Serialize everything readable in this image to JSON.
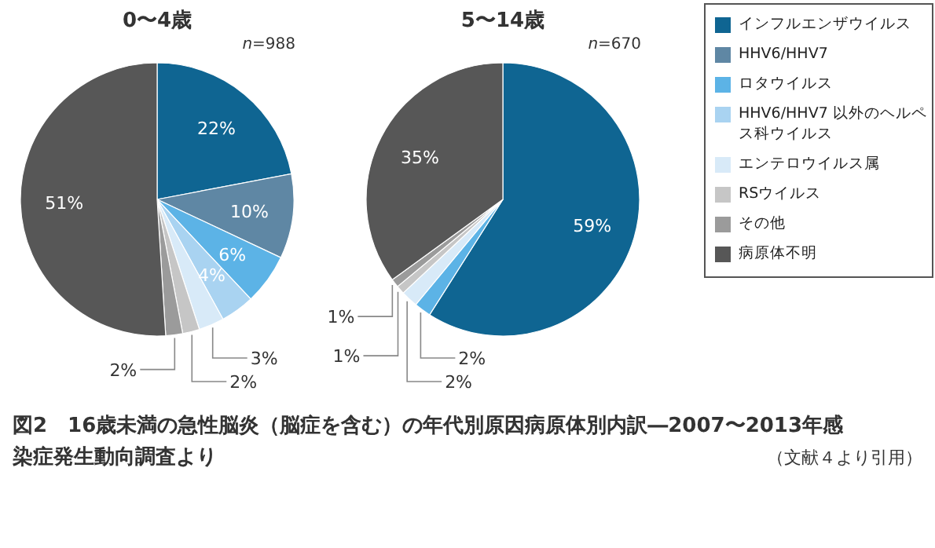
{
  "chart_data": [
    {
      "type": "pie",
      "title": "0〜4歳",
      "categories": [
        "インフルエンザウイルス",
        "HHV6/HHV7",
        "ロタウイルス",
        "HHV6/HHV7 以外のヘルペス科ウイルス",
        "エンテロウイルス属",
        "RSウイルス",
        "その他",
        "病原体不明"
      ],
      "values": [
        22,
        10,
        6,
        4,
        3,
        2,
        2,
        51
      ],
      "value_labels": [
        "22%",
        "10%",
        "6%",
        "4%",
        "3%",
        "2%",
        "2%",
        "51%"
      ],
      "colors": [
        "#0f6592",
        "#5f87a4",
        "#5cb3e6",
        "#a9d3f1",
        "#d8eaf8",
        "#c6c6c6",
        "#9b9b9b",
        "#575757"
      ],
      "legend": "right",
      "annotations": [
        "*n*=988"
      ]
    },
    {
      "type": "pie",
      "title": "5〜14歳",
      "categories": [
        null,
        null,
        null,
        null,
        null,
        null
      ],
      "values": [
        59,
        2,
        2,
        1,
        1,
        35
      ],
      "value_labels": [
        "59%",
        "2%",
        "2%",
        "1%",
        "1%",
        "35%"
      ],
      "colors": [
        "#0f6592",
        "#5cb3e6",
        "#d8eaf8",
        "#c6c6c6",
        "#9b9b9b",
        "#575757"
      ],
      "annotations": [
        "*n*=670",
        "図2　16歳未満の急性脳炎（脳症を含む）の年代別原因病原体別内訳―2007〜2013年感染症発生動向調査より",
        "（文献４より引用）"
      ]
    }
  ]
}
